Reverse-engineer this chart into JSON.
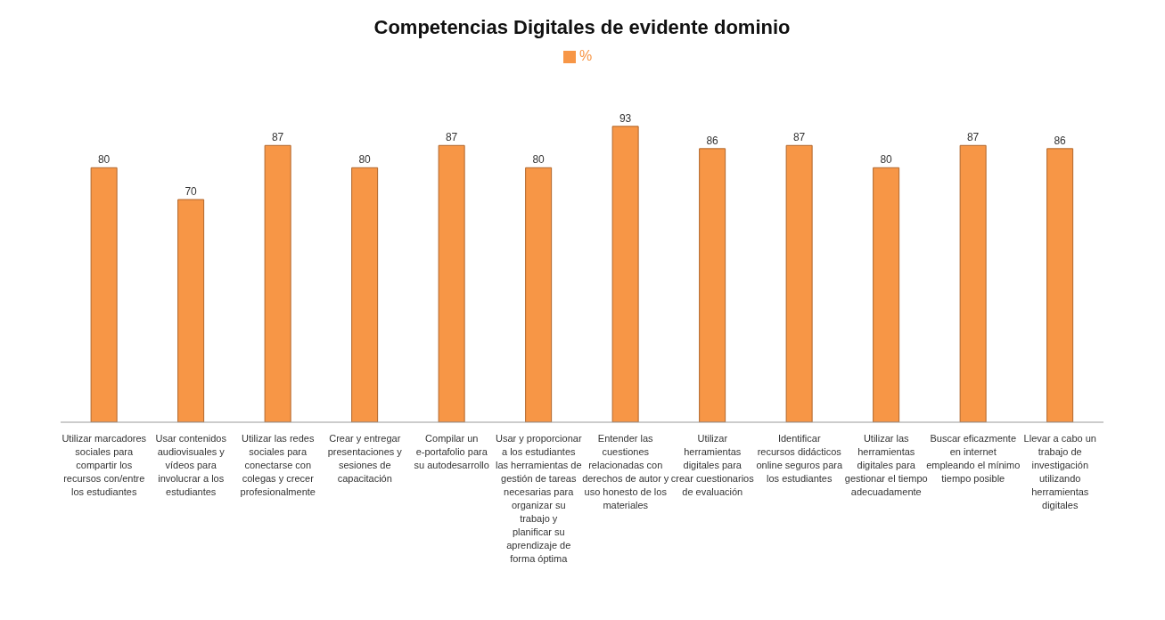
{
  "chart_data": {
    "type": "bar",
    "title": "Competencias Digitales de evidente dominio",
    "categories": [
      "Utilizar marcadores sociales para compartir los recursos con/entre los estudiantes",
      "Usar contenidos audiovisuales y vídeos para involucrar a los estudiantes",
      "Utilizar las redes sociales para conectarse con colegas y crecer profesionalmente",
      "Crear y entregar presentaciones y sesiones de capacitación",
      "Compilar un e-portafolio para su autodesarrollo",
      "Usar y proporcionar a los estudiantes las herramientas de gestión de tareas necesarias para organizar su trabajo y planificar su aprendizaje de forma óptima",
      "Entender las cuestiones relacionadas con derechos de autor y uso honesto de los materiales",
      "Utilizar herramientas digitales para crear cuestionarios de evaluación",
      "Identificar recursos didácticos online seguros para los estudiantes",
      "Utilizar las herramientas digitales para gestionar el tiempo adecuadamente",
      "Buscar eficazmente en internet empleando el mínimo tiempo posible",
      "Llevar a cabo un trabajo de investigación utilizando herramientas digitales"
    ],
    "series": [
      {
        "name": "%",
        "color": "#f79646",
        "values": [
          80,
          70,
          87,
          80,
          87,
          80,
          93,
          86,
          87,
          80,
          87,
          86
        ]
      }
    ],
    "data_labels": true,
    "legend": "top"
  }
}
